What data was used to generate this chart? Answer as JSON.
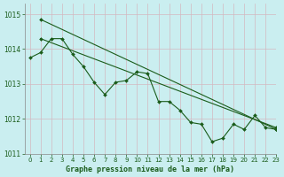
{
  "title": "Graphe pression niveau de la mer (hPa)",
  "background_color": "#caeef0",
  "grid_color": "#b0d8dc",
  "line_color": "#1a5c1a",
  "xlim": [
    -0.5,
    23
  ],
  "ylim": [
    1011,
    1015.3
  ],
  "yticks": [
    1011,
    1012,
    1013,
    1014,
    1015
  ],
  "xticks": [
    0,
    1,
    2,
    3,
    4,
    5,
    6,
    7,
    8,
    9,
    10,
    11,
    12,
    13,
    14,
    15,
    16,
    17,
    18,
    19,
    20,
    21,
    22,
    23
  ],
  "line_straight1": {
    "x": [
      1,
      23
    ],
    "y": [
      1014.85,
      1011.7
    ]
  },
  "line_straight2": {
    "x": [
      1,
      23
    ],
    "y": [
      1014.3,
      1011.75
    ]
  },
  "line_zigzag": {
    "x": [
      0,
      1,
      2,
      3,
      4,
      5,
      6,
      7,
      8,
      9,
      10,
      11,
      12,
      13,
      14,
      15,
      16,
      17,
      18,
      19,
      20,
      21,
      22,
      23
    ],
    "y": [
      1013.75,
      1013.9,
      1014.3,
      1014.3,
      1013.85,
      1013.5,
      1013.05,
      1012.7,
      1013.05,
      1013.1,
      1013.35,
      1013.3,
      1012.5,
      1012.5,
      1012.25,
      1011.9,
      1011.85,
      1011.35,
      1011.45,
      1011.85,
      1011.7,
      1012.1,
      1011.75,
      1011.7
    ]
  }
}
